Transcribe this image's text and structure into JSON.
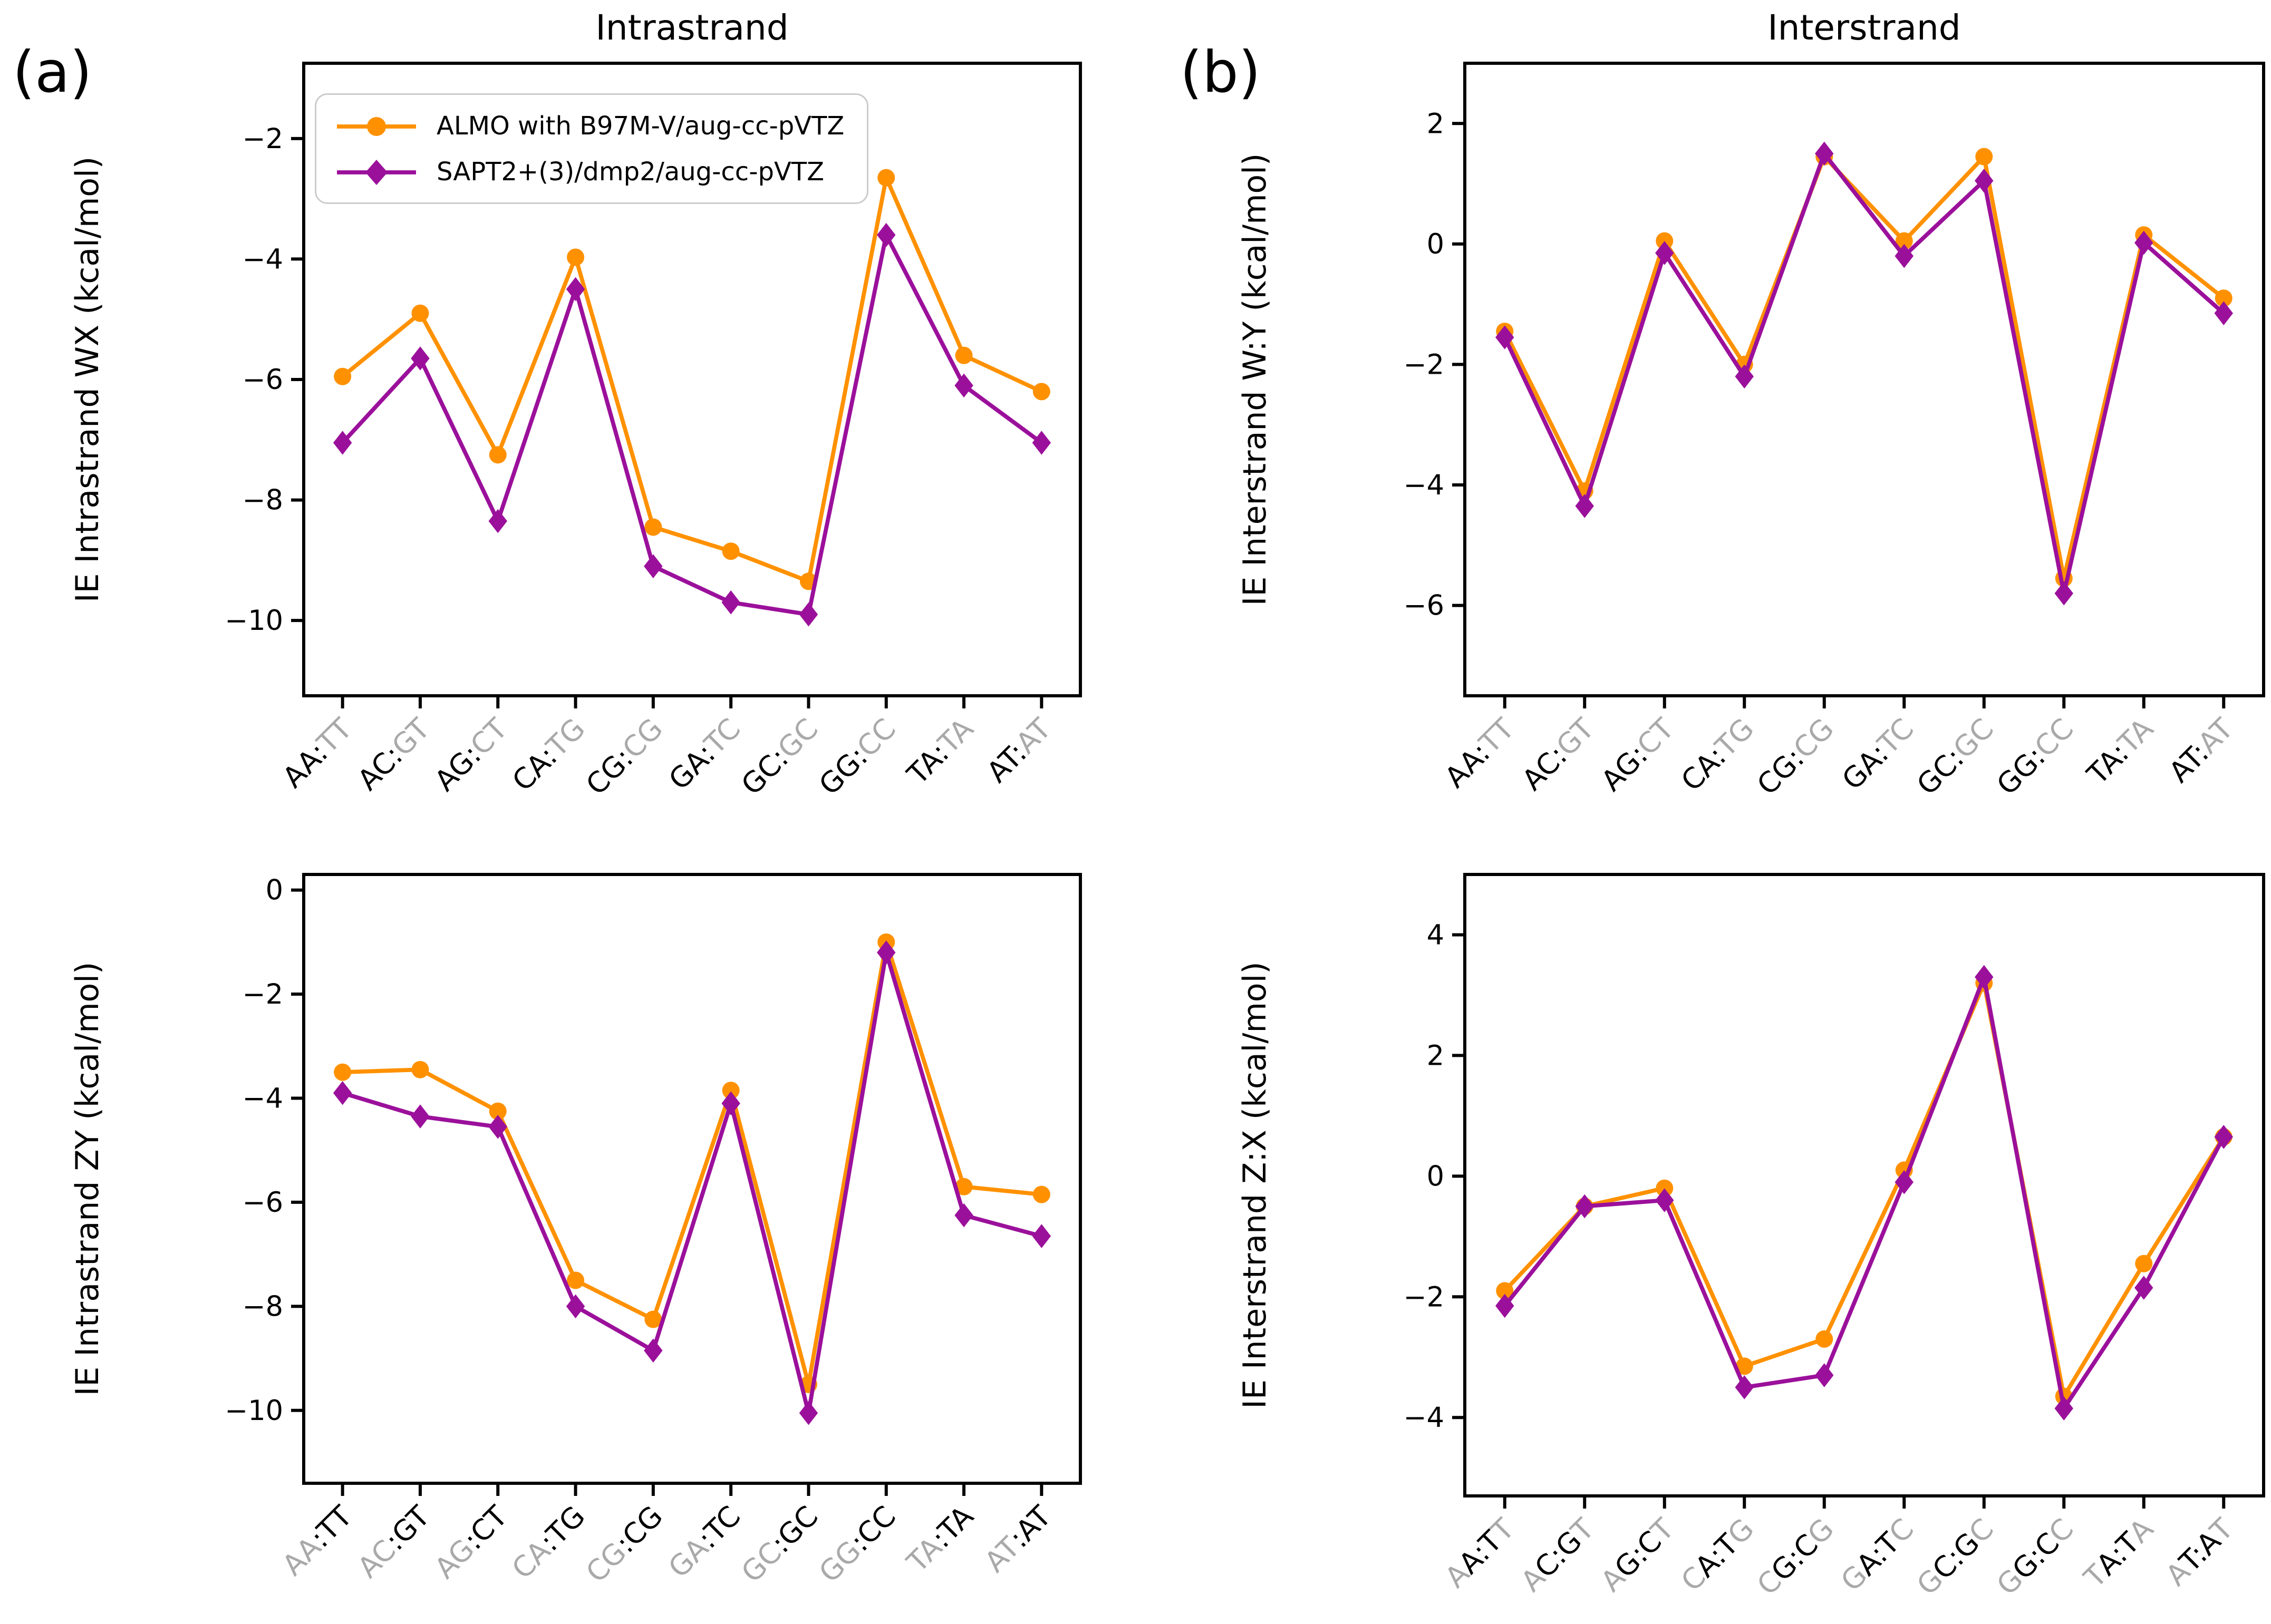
{
  "figure": {
    "panel_labels": {
      "a": "(a)",
      "b": "(b)"
    },
    "column_titles": {
      "left": "Intrastrand",
      "right": "Interstrand"
    }
  },
  "legend": {
    "items": [
      {
        "label": "ALMO with B97M-V/aug-cc-pVTZ",
        "color": "#ff9100",
        "marker": "circle"
      },
      {
        "label": "SAPT2+(3)/dmp2/aug-cc-pVTZ",
        "color": "#9b109b",
        "marker": "diamond"
      }
    ]
  },
  "colors": {
    "almo_orange": "#ff9100",
    "sapt_purple": "#9b109b",
    "xlabel_gray": "#a9a9a9",
    "axis_black": "#000000"
  },
  "chart_data": [
    {
      "id": "intrastrand-wx",
      "type": "line",
      "title": "Intrastrand",
      "ylabel": "IE Intrastrand WX (kcal/mol)",
      "ylim": [
        -11.25,
        -0.75
      ],
      "yticks": [
        -2,
        -4,
        -6,
        -8,
        -10
      ],
      "grid": false,
      "legend_position": "upper left",
      "categories": [
        "AA:TT",
        "AC:GT",
        "AG:CT",
        "CA:TG",
        "CG:CG",
        "GA:TC",
        "GC:GC",
        "GG:CC",
        "TA:TA",
        "AT:AT"
      ],
      "xlabel_black_mask": [
        1,
        1,
        0,
        0
      ],
      "series": [
        {
          "name": "ALMO with B97M-V/aug-cc-pVTZ",
          "values": [
            -5.95,
            -4.9,
            -7.25,
            -3.97,
            -8.45,
            -8.85,
            -9.35,
            -2.65,
            -5.6,
            -6.2
          ]
        },
        {
          "name": "SAPT2+(3)/dmp2/aug-cc-pVTZ",
          "values": [
            -7.05,
            -5.65,
            -8.35,
            -4.5,
            -9.1,
            -9.7,
            -9.9,
            -3.6,
            -6.1,
            -7.05
          ]
        }
      ]
    },
    {
      "id": "interstrand-wy",
      "type": "line",
      "title": "Interstrand",
      "ylabel": "IE Interstrand W:Y (kcal/mol)",
      "ylim": [
        -7.5,
        3.0
      ],
      "yticks": [
        2,
        0,
        -2,
        -4,
        -6
      ],
      "grid": false,
      "categories": [
        "AA:TT",
        "AC:GT",
        "AG:CT",
        "CA:TG",
        "CG:CG",
        "GA:TC",
        "GC:GC",
        "GG:CC",
        "TA:TA",
        "AT:AT"
      ],
      "xlabel_black_mask": [
        1,
        1,
        0,
        0
      ],
      "series": [
        {
          "name": "ALMO with B97M-V/aug-cc-pVTZ",
          "values": [
            -1.45,
            -4.1,
            0.05,
            -2.0,
            1.45,
            0.05,
            1.45,
            -5.55,
            0.15,
            -0.9
          ]
        },
        {
          "name": "SAPT2+(3)/dmp2/aug-cc-pVTZ",
          "values": [
            -1.55,
            -4.35,
            -0.15,
            -2.2,
            1.5,
            -0.2,
            1.05,
            -5.8,
            0.02,
            -1.15
          ]
        }
      ]
    },
    {
      "id": "intrastrand-zy",
      "type": "line",
      "ylabel": "IE Intrastrand ZY (kcal/mol)",
      "ylim": [
        -11.4,
        0.3
      ],
      "yticks": [
        0,
        -2,
        -4,
        -6,
        -8,
        -10
      ],
      "grid": false,
      "categories": [
        "AA:TT",
        "AC:GT",
        "AG:CT",
        "CA:TG",
        "CG:CG",
        "GA:TC",
        "GC:GC",
        "GG:CC",
        "TA:TA",
        "AT:AT"
      ],
      "xlabel_black_mask": [
        0,
        0,
        1,
        1
      ],
      "series": [
        {
          "name": "ALMO with B97M-V/aug-cc-pVTZ",
          "values": [
            -3.5,
            -3.45,
            -4.25,
            -7.5,
            -8.25,
            -3.85,
            -9.5,
            -1.0,
            -5.7,
            -5.85
          ]
        },
        {
          "name": "SAPT2+(3)/dmp2/aug-cc-pVTZ",
          "values": [
            -3.9,
            -4.35,
            -4.55,
            -8.0,
            -8.85,
            -4.1,
            -10.05,
            -1.2,
            -6.25,
            -6.65
          ]
        }
      ]
    },
    {
      "id": "interstrand-zx",
      "type": "line",
      "ylabel": "IE Interstrand Z:X (kcal/mol)",
      "ylim": [
        -5.3,
        5.0
      ],
      "yticks": [
        4,
        2,
        0,
        -2,
        -4
      ],
      "grid": false,
      "categories": [
        "AA:TT",
        "AC:GT",
        "AG:CT",
        "CA:TG",
        "CG:CG",
        "GA:TC",
        "GC:GC",
        "GG:CC",
        "TA:TA",
        "AT:AT"
      ],
      "xlabel_black_mask": [
        0,
        1,
        1,
        0
      ],
      "series": [
        {
          "name": "ALMO with B97M-V/aug-cc-pVTZ",
          "values": [
            -1.9,
            -0.5,
            -0.2,
            -3.15,
            -2.7,
            0.1,
            3.2,
            -3.65,
            -1.45,
            0.65
          ]
        },
        {
          "name": "SAPT2+(3)/dmp2/aug-cc-pVTZ",
          "values": [
            -2.15,
            -0.5,
            -0.4,
            -3.5,
            -3.3,
            -0.1,
            3.3,
            -3.85,
            -1.85,
            0.65
          ]
        }
      ]
    }
  ]
}
